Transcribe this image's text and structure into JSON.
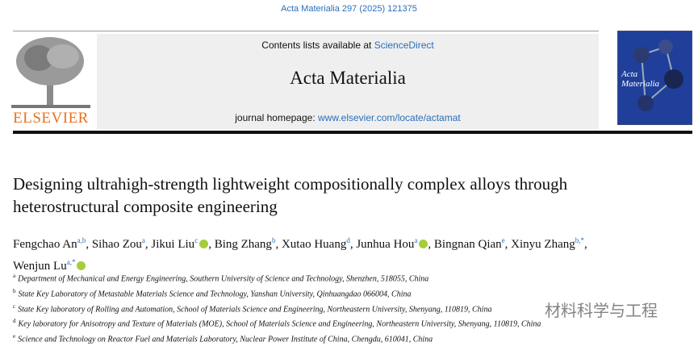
{
  "citation": "Acta Materialia 297 (2025) 121375",
  "header": {
    "contents_prefix": "Contents lists available at ",
    "contents_link": "ScienceDirect",
    "journal": "Acta Materialia",
    "homepage_prefix": "journal homepage: ",
    "homepage_link": "www.elsevier.com/locate/actamat"
  },
  "publisher": "ELSEVIER",
  "cover": {
    "title": "Acta Materialia"
  },
  "title": "Designing ultrahigh-strength lightweight compositionally complex alloys through heterostructural composite engineering",
  "author_separator": ",",
  "authors": [
    {
      "name": "Fengchao An",
      "affiliations": "a,b"
    },
    {
      "name": "Sihao Zou",
      "affiliations": "a"
    },
    {
      "name": "Jikui Liu",
      "affiliations": "c",
      "orcid": true
    },
    {
      "name": "Bing Zhang",
      "affiliations": "b"
    },
    {
      "name": "Xutao Huang",
      "affiliations": "d"
    },
    {
      "name": "Junhua Hou",
      "affiliations": "a",
      "orcid": true
    },
    {
      "name": "Bingnan Qian",
      "affiliations": "e"
    },
    {
      "name": "Xinyu Zhang",
      "affiliations": "b,*"
    },
    {
      "name": "Wenjun Lu",
      "affiliations": "a,*",
      "orcid": true
    }
  ],
  "affiliations": [
    {
      "label": "a",
      "text": "Department of Mechanical and Energy Engineering, Southern University of Science and Technology, Shenzhen, 518055, China"
    },
    {
      "label": "b",
      "text": "State Key Laboratory of Metastable Materials Science and Technology, Yanshan University, Qinhuangdao 066004, China"
    },
    {
      "label": "c",
      "text": "State Key laboratory of Rolling and Automation, School of Materials Science and Engineering, Northeastern University, Shenyang, 110819, China"
    },
    {
      "label": "d",
      "text": "Key laboratory for Anisotropy and Texture of Materials (MOE), School of Materials Science and Engineering, Northeastern University, Shenyang, 110819, China"
    },
    {
      "label": "e",
      "text": "Science and Technology on Reactor Fuel and Materials Laboratory, Nuclear Power Institute of China, Chengdu, 610041, China"
    }
  ],
  "watermark": "材料科学与工程"
}
